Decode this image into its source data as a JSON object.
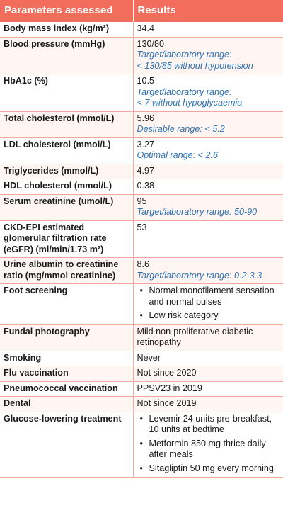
{
  "header": {
    "col1": "Parameters assessed",
    "col2": "Results"
  },
  "rows": [
    {
      "param": "Body mass index (kg/m²)",
      "value": "34.4"
    },
    {
      "param": "Blood pressure (mmHg)",
      "value": "130/80",
      "note": "Target/laboratory range:\n< 130/85 without hypotension"
    },
    {
      "param": "HbA1c (%)",
      "value": "10.5",
      "note": "Target/laboratory range:\n< 7 without hypoglycaemia"
    },
    {
      "param": "Total cholesterol (mmol/L)",
      "value": "5.96",
      "note": "Desirable range: < 5.2"
    },
    {
      "param": "LDL cholesterol (mmol/L)",
      "value": "3.27",
      "note": "Optimal range: < 2.6"
    },
    {
      "param": "Triglycerides (mmol/L)",
      "value": "4.97"
    },
    {
      "param": "HDL cholesterol (mmol/L)",
      "value": "0.38"
    },
    {
      "param": "Serum creatinine (umol/L)",
      "value": "95",
      "note": "Target/laboratory range: 50-90"
    },
    {
      "param": "CKD-EPI estimated glomerular filtration rate (eGFR) (ml/min/1.73 m²)",
      "value": "53"
    },
    {
      "param": "Urine albumin to creatinine ratio (mg/mmol creatinine)",
      "value": "8.6",
      "note": "Target/laboratory range: 0.2-3.3"
    },
    {
      "param": "Foot screening",
      "bullets": [
        "Normal monofilament sensation and normal pulses",
        "Low risk category"
      ]
    },
    {
      "param": "Fundal photography",
      "value": "Mild non-proliferative diabetic retinopathy"
    },
    {
      "param": "Smoking",
      "value": "Never"
    },
    {
      "param": "Flu vaccination",
      "value": "Not since 2020"
    },
    {
      "param": "Pneumococcal vaccination",
      "value": "PPSV23 in 2019"
    },
    {
      "param": "Dental",
      "value": "Not since 2019"
    },
    {
      "param": "Glucose-lowering treatment",
      "bullets": [
        "Levemir 24 units pre-breakfast, 10 units at bedtime",
        "Metformin 850 mg thrice daily after meals",
        "Sitagliptin 50 mg every morning"
      ]
    }
  ]
}
